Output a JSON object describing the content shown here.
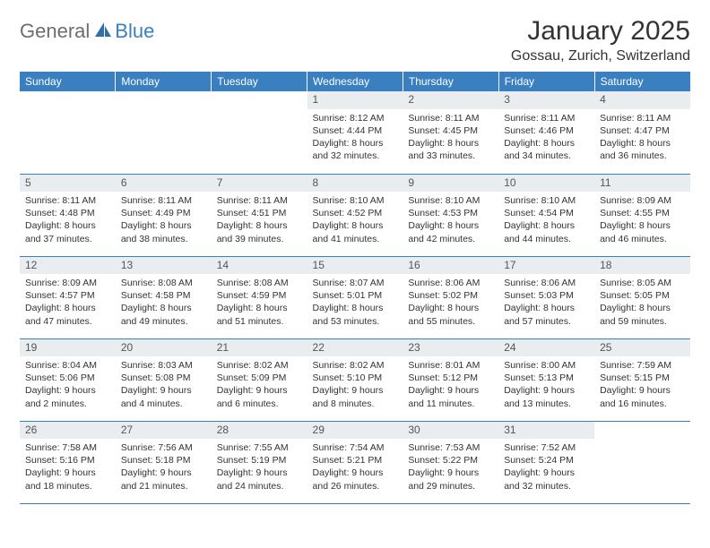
{
  "brand": {
    "part1": "General",
    "part2": "Blue"
  },
  "title": "January 2025",
  "location": "Gossau, Zurich, Switzerland",
  "colors": {
    "header_bg": "#3a7fbf",
    "header_text": "#ffffff",
    "daynum_bg": "#e9edf0",
    "border": "#3a7fbf"
  },
  "day_headers": [
    "Sunday",
    "Monday",
    "Tuesday",
    "Wednesday",
    "Thursday",
    "Friday",
    "Saturday"
  ],
  "weeks": [
    [
      {
        "n": "",
        "r": "",
        "s": "",
        "d": ""
      },
      {
        "n": "",
        "r": "",
        "s": "",
        "d": ""
      },
      {
        "n": "",
        "r": "",
        "s": "",
        "d": ""
      },
      {
        "n": "1",
        "r": "Sunrise: 8:12 AM",
        "s": "Sunset: 4:44 PM",
        "d": "Daylight: 8 hours and 32 minutes."
      },
      {
        "n": "2",
        "r": "Sunrise: 8:11 AM",
        "s": "Sunset: 4:45 PM",
        "d": "Daylight: 8 hours and 33 minutes."
      },
      {
        "n": "3",
        "r": "Sunrise: 8:11 AM",
        "s": "Sunset: 4:46 PM",
        "d": "Daylight: 8 hours and 34 minutes."
      },
      {
        "n": "4",
        "r": "Sunrise: 8:11 AM",
        "s": "Sunset: 4:47 PM",
        "d": "Daylight: 8 hours and 36 minutes."
      }
    ],
    [
      {
        "n": "5",
        "r": "Sunrise: 8:11 AM",
        "s": "Sunset: 4:48 PM",
        "d": "Daylight: 8 hours and 37 minutes."
      },
      {
        "n": "6",
        "r": "Sunrise: 8:11 AM",
        "s": "Sunset: 4:49 PM",
        "d": "Daylight: 8 hours and 38 minutes."
      },
      {
        "n": "7",
        "r": "Sunrise: 8:11 AM",
        "s": "Sunset: 4:51 PM",
        "d": "Daylight: 8 hours and 39 minutes."
      },
      {
        "n": "8",
        "r": "Sunrise: 8:10 AM",
        "s": "Sunset: 4:52 PM",
        "d": "Daylight: 8 hours and 41 minutes."
      },
      {
        "n": "9",
        "r": "Sunrise: 8:10 AM",
        "s": "Sunset: 4:53 PM",
        "d": "Daylight: 8 hours and 42 minutes."
      },
      {
        "n": "10",
        "r": "Sunrise: 8:10 AM",
        "s": "Sunset: 4:54 PM",
        "d": "Daylight: 8 hours and 44 minutes."
      },
      {
        "n": "11",
        "r": "Sunrise: 8:09 AM",
        "s": "Sunset: 4:55 PM",
        "d": "Daylight: 8 hours and 46 minutes."
      }
    ],
    [
      {
        "n": "12",
        "r": "Sunrise: 8:09 AM",
        "s": "Sunset: 4:57 PM",
        "d": "Daylight: 8 hours and 47 minutes."
      },
      {
        "n": "13",
        "r": "Sunrise: 8:08 AM",
        "s": "Sunset: 4:58 PM",
        "d": "Daylight: 8 hours and 49 minutes."
      },
      {
        "n": "14",
        "r": "Sunrise: 8:08 AM",
        "s": "Sunset: 4:59 PM",
        "d": "Daylight: 8 hours and 51 minutes."
      },
      {
        "n": "15",
        "r": "Sunrise: 8:07 AM",
        "s": "Sunset: 5:01 PM",
        "d": "Daylight: 8 hours and 53 minutes."
      },
      {
        "n": "16",
        "r": "Sunrise: 8:06 AM",
        "s": "Sunset: 5:02 PM",
        "d": "Daylight: 8 hours and 55 minutes."
      },
      {
        "n": "17",
        "r": "Sunrise: 8:06 AM",
        "s": "Sunset: 5:03 PM",
        "d": "Daylight: 8 hours and 57 minutes."
      },
      {
        "n": "18",
        "r": "Sunrise: 8:05 AM",
        "s": "Sunset: 5:05 PM",
        "d": "Daylight: 8 hours and 59 minutes."
      }
    ],
    [
      {
        "n": "19",
        "r": "Sunrise: 8:04 AM",
        "s": "Sunset: 5:06 PM",
        "d": "Daylight: 9 hours and 2 minutes."
      },
      {
        "n": "20",
        "r": "Sunrise: 8:03 AM",
        "s": "Sunset: 5:08 PM",
        "d": "Daylight: 9 hours and 4 minutes."
      },
      {
        "n": "21",
        "r": "Sunrise: 8:02 AM",
        "s": "Sunset: 5:09 PM",
        "d": "Daylight: 9 hours and 6 minutes."
      },
      {
        "n": "22",
        "r": "Sunrise: 8:02 AM",
        "s": "Sunset: 5:10 PM",
        "d": "Daylight: 9 hours and 8 minutes."
      },
      {
        "n": "23",
        "r": "Sunrise: 8:01 AM",
        "s": "Sunset: 5:12 PM",
        "d": "Daylight: 9 hours and 11 minutes."
      },
      {
        "n": "24",
        "r": "Sunrise: 8:00 AM",
        "s": "Sunset: 5:13 PM",
        "d": "Daylight: 9 hours and 13 minutes."
      },
      {
        "n": "25",
        "r": "Sunrise: 7:59 AM",
        "s": "Sunset: 5:15 PM",
        "d": "Daylight: 9 hours and 16 minutes."
      }
    ],
    [
      {
        "n": "26",
        "r": "Sunrise: 7:58 AM",
        "s": "Sunset: 5:16 PM",
        "d": "Daylight: 9 hours and 18 minutes."
      },
      {
        "n": "27",
        "r": "Sunrise: 7:56 AM",
        "s": "Sunset: 5:18 PM",
        "d": "Daylight: 9 hours and 21 minutes."
      },
      {
        "n": "28",
        "r": "Sunrise: 7:55 AM",
        "s": "Sunset: 5:19 PM",
        "d": "Daylight: 9 hours and 24 minutes."
      },
      {
        "n": "29",
        "r": "Sunrise: 7:54 AM",
        "s": "Sunset: 5:21 PM",
        "d": "Daylight: 9 hours and 26 minutes."
      },
      {
        "n": "30",
        "r": "Sunrise: 7:53 AM",
        "s": "Sunset: 5:22 PM",
        "d": "Daylight: 9 hours and 29 minutes."
      },
      {
        "n": "31",
        "r": "Sunrise: 7:52 AM",
        "s": "Sunset: 5:24 PM",
        "d": "Daylight: 9 hours and 32 minutes."
      },
      {
        "n": "",
        "r": "",
        "s": "",
        "d": ""
      }
    ]
  ]
}
